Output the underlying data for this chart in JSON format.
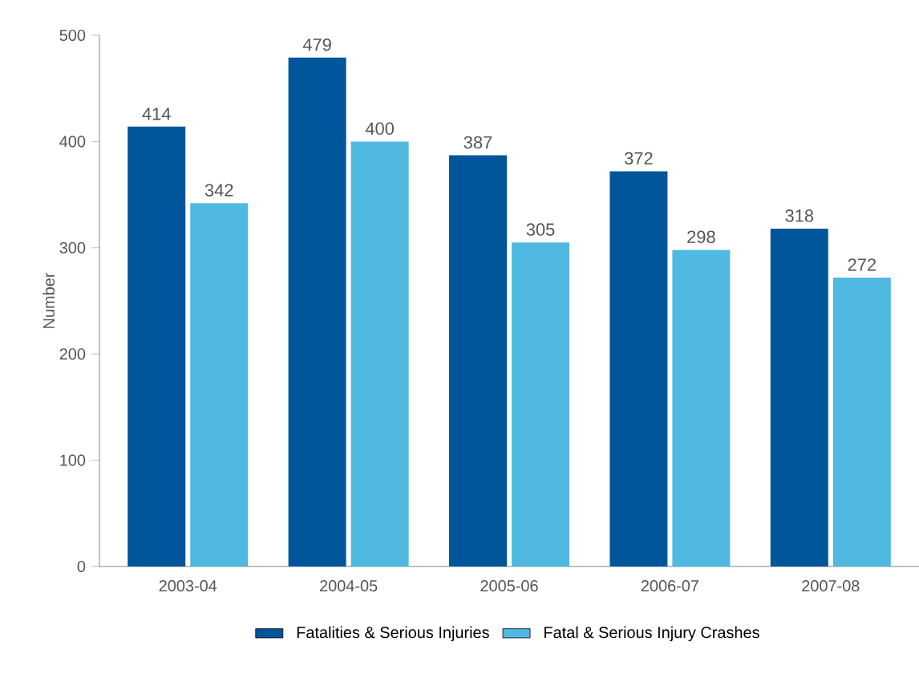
{
  "chart_data": {
    "type": "bar",
    "ylabel": "Number",
    "categories": [
      "2003-04",
      "2004-05",
      "2005-06",
      "2006-07",
      "2007-08"
    ],
    "series": [
      {
        "name": "Fatalities & Serious Injuries",
        "color": "#00559b",
        "values": [
          414,
          479,
          387,
          372,
          318
        ]
      },
      {
        "name": "Fatal & Serious Injury Crashes",
        "color": "#4fb9e2",
        "values": [
          342,
          400,
          305,
          298,
          272
        ]
      }
    ],
    "ylim": [
      0,
      500
    ],
    "yticks": [
      0,
      100,
      200,
      300,
      400,
      500
    ],
    "data_labels": true,
    "legend": "bottom",
    "grid": false
  }
}
